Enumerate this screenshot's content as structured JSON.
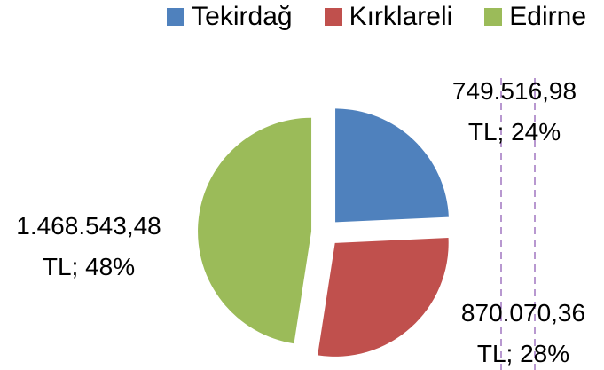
{
  "chart_data": {
    "type": "pie",
    "categories": [
      "Tekirdağ",
      "Kırklareli",
      "Edirne"
    ],
    "values": [
      749516.98,
      870070.36,
      1468543.48
    ],
    "value_labels": [
      "749.516,98 TL; 24%",
      "870.070,36 TL; 28%",
      "1.468.543,48 TL; 48%"
    ],
    "colors": [
      "#4f81bd",
      "#c0504d",
      "#9bbb59"
    ],
    "legend": "top"
  }
}
